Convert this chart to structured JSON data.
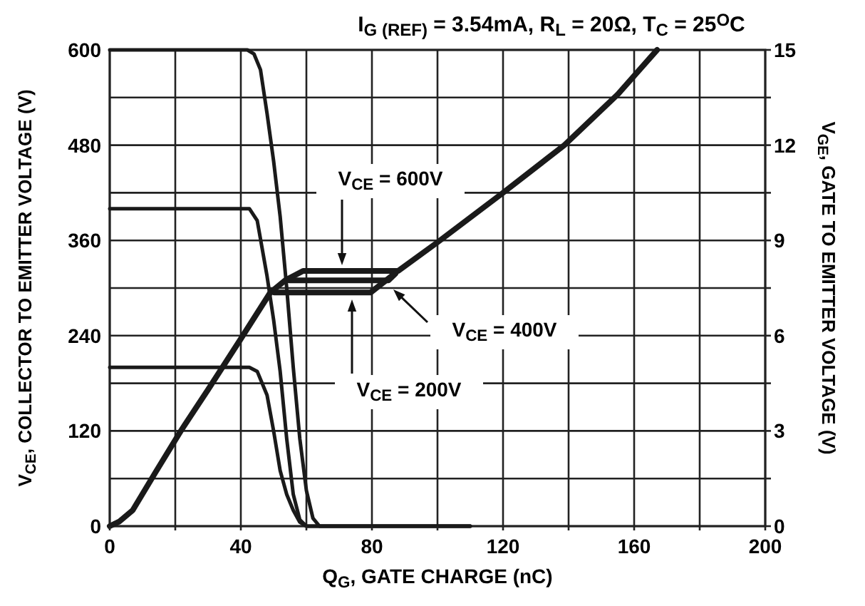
{
  "chart_data": {
    "type": "line",
    "title": "I$_{G (REF)}$ = 3.54mA, R$_{L}$ = 20Ω, T$_{C}$ = 25$^{O}$C",
    "xlabel": "Q$_{G}$, GATE CHARGE (nC)",
    "ylabel": "V$_{CE}$, COLLECTOR TO EMITTER VOLTAGE (V)",
    "y2label": "V$_{GE}$, GATE TO EMITTER VOLTAGE (V)",
    "annotations": [
      "V$_{CE}$ = 600V",
      "V$_{CE}$ = 400V",
      "V$_{CE}$ = 200V"
    ],
    "xlim": [
      0,
      200
    ],
    "xticks": [
      0,
      {
        "value": 20,
        "label": null
      },
      40,
      {
        "value": 60,
        "label": null
      },
      80,
      {
        "value": 100,
        "label": null
      },
      120,
      {
        "value": 140,
        "label": null
      },
      160,
      {
        "value": 180,
        "label": null
      },
      200
    ],
    "ylim": [
      0,
      600
    ],
    "yticks": [
      0,
      {
        "value": 60,
        "label": null
      },
      120,
      {
        "value": 180,
        "label": null
      },
      240,
      {
        "value": 300,
        "label": null
      },
      360,
      {
        "value": 420,
        "label": null
      },
      480,
      {
        "value": 540,
        "label": null
      },
      600
    ],
    "y2lim": [
      0,
      15
    ],
    "y2ticks": [
      0,
      {
        "value": 1.5,
        "label": null
      },
      3,
      {
        "value": 4.5,
        "label": null
      },
      6,
      {
        "value": 7.5,
        "label": null
      },
      9,
      {
        "value": 10.5,
        "label": null
      },
      12,
      {
        "value": 13.5,
        "label": null
      },
      15
    ],
    "grid": true,
    "marker": "none",
    "line_style": "solid",
    "series": [
      {
        "color": "#1a1a1a",
        "x": [
          0,
          42,
          44,
          46,
          48,
          50,
          52,
          54,
          56,
          58,
          60,
          62,
          64,
          110
        ],
        "values": [
          600,
          600,
          595,
          575,
          520,
          460,
          390,
          300,
          200,
          110,
          45,
          10,
          0,
          0
        ]
      },
      {
        "color": "#1a1a1a",
        "x": [
          0,
          42.6,
          45,
          48,
          50,
          52,
          54,
          56,
          58,
          60,
          110
        ],
        "values": [
          400,
          400,
          385,
          315,
          260,
          195,
          110,
          40,
          8,
          0,
          0
        ]
      },
      {
        "color": "#1a1a1a",
        "x": [
          0,
          42.6,
          45,
          48,
          50,
          52,
          54,
          56,
          58,
          60,
          110
        ],
        "values": [
          200,
          200,
          195,
          165,
          120,
          70,
          40,
          20,
          5,
          0,
          0
        ]
      },
      {
        "color": "#1a1a1a",
        "axis": "y2",
        "x": [
          0,
          3,
          7,
          14,
          21.7,
          30,
          40,
          49,
          53.5,
          59,
          88,
          100,
          120,
          138.7,
          155,
          167
        ],
        "values": [
          0,
          0.15,
          0.5,
          1.7,
          3,
          4.3,
          5.9,
          7.36,
          7.74,
          8.04,
          8.04,
          8.94,
          10.5,
          12,
          13.6,
          15
        ]
      },
      {
        "color": "#1a1a1a",
        "axis": "y2",
        "x": [
          54.8,
          85,
          87.2
        ],
        "values": [
          7.74,
          7.74,
          7.96
        ]
      },
      {
        "color": "#1a1a1a",
        "axis": "y2",
        "x": [
          50.2,
          79.6,
          86.5
        ],
        "values": [
          7.36,
          7.36,
          7.92
        ]
      }
    ]
  }
}
